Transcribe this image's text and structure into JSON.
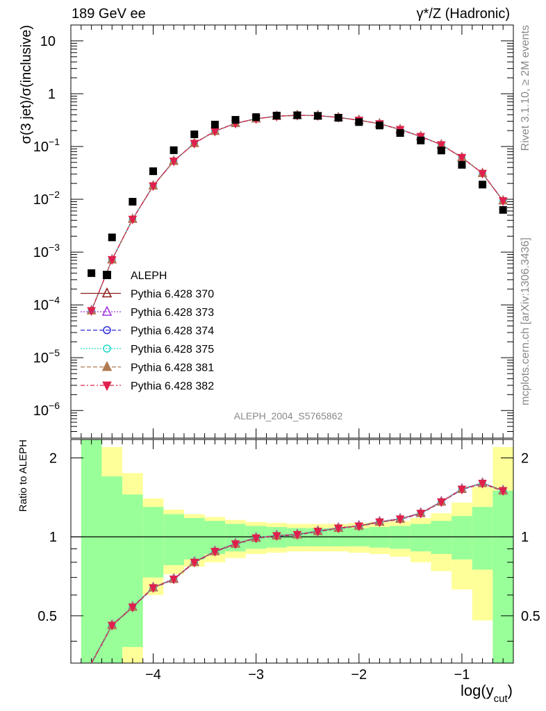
{
  "header": {
    "left": "189 GeV ee",
    "right": "γ*/Z (Hadronic)"
  },
  "side_labels": {
    "rivet": "Rivet 3.1.10, ≥ 2M events",
    "mcplots": "mcplots.cern.ch [arXiv:1306.3436]"
  },
  "analysis_id": "ALEPH_2004_S5765862",
  "axes": {
    "ylabel_top": "σ(3 jet)/σ(inclusive)",
    "ylabel_bottom": "Ratio to ALEPH",
    "xlabel": "log(y_cut)",
    "x_ticks": [
      "−4",
      "−3",
      "−2",
      "−1"
    ],
    "y_ticks_top": [
      "10^-6",
      "10^-5",
      "10^-4",
      "10^-3",
      "10^-2",
      "10^-1",
      "1",
      "10"
    ],
    "y_ticks_bottom": [
      "0.5",
      "1",
      "2"
    ]
  },
  "legend": [
    {
      "label": "ALEPH",
      "marker": "square-filled",
      "color": "#000000"
    },
    {
      "label": "Pythia 6.428 370",
      "marker": "triangle-up-open",
      "color": "#8b1a1a"
    },
    {
      "label": "Pythia 6.428 373",
      "marker": "triangle-up-open",
      "color": "#9a30e0"
    },
    {
      "label": "Pythia 6.428 374",
      "marker": "circle-open",
      "color": "#2c2cd8"
    },
    {
      "label": "Pythia 6.428 375",
      "marker": "circle-open",
      "color": "#20d8c8"
    },
    {
      "label": "Pythia 6.428 381",
      "marker": "triangle-up-filled",
      "color": "#b07a50"
    },
    {
      "label": "Pythia 6.428 382",
      "marker": "triangle-down-filled",
      "color": "#e0204c"
    }
  ],
  "chart_data": {
    "type": "scatter",
    "x_range": [
      -4.8,
      -0.5
    ],
    "y_range_top": [
      3e-07,
      20
    ],
    "y_scale_top": "log",
    "y_range_bottom": [
      0.33,
      2.35
    ],
    "y_scale_bottom": "log",
    "x": [
      -4.6,
      -4.4,
      -4.2,
      -4.0,
      -3.8,
      -3.6,
      -3.4,
      -3.2,
      -3.0,
      -2.8,
      -2.6,
      -2.4,
      -2.2,
      -2.0,
      -1.8,
      -1.6,
      -1.4,
      -1.2,
      -1.0,
      -0.8,
      -0.6
    ],
    "data": {
      "name": "ALEPH",
      "y": [
        0.0004,
        0.0019,
        0.009,
        0.034,
        0.085,
        0.17,
        0.26,
        0.32,
        0.36,
        0.385,
        0.39,
        0.38,
        0.35,
        0.29,
        0.25,
        0.18,
        0.13,
        0.084,
        0.045,
        0.019,
        0.0063
      ]
    },
    "mc_central": [
      7.8e-05,
      0.00072,
      0.0042,
      0.018,
      0.053,
      0.115,
      0.195,
      0.275,
      0.335,
      0.375,
      0.39,
      0.385,
      0.355,
      0.315,
      0.27,
      0.21,
      0.155,
      0.108,
      0.062,
      0.031,
      0.0094
    ],
    "ratio": [
      0.33,
      0.46,
      0.54,
      0.64,
      0.69,
      0.8,
      0.88,
      0.94,
      0.99,
      1.01,
      1.02,
      1.05,
      1.08,
      1.1,
      1.14,
      1.17,
      1.23,
      1.36,
      1.52,
      1.6,
      1.5
    ],
    "series": [
      {
        "name": "Pythia 6.428 370"
      },
      {
        "name": "Pythia 6.428 373"
      },
      {
        "name": "Pythia 6.428 374"
      },
      {
        "name": "Pythia 6.428 375"
      },
      {
        "name": "Pythia 6.428 381"
      },
      {
        "name": "Pythia 6.428 382"
      }
    ],
    "uncertainty_bands": {
      "x_edges": [
        -4.7,
        -4.5,
        -4.3,
        -4.1,
        -3.9,
        -3.7,
        -3.5,
        -3.3,
        -3.1,
        -2.9,
        -2.7,
        -2.5,
        -2.3,
        -2.1,
        -1.9,
        -1.7,
        -1.5,
        -1.3,
        -1.1,
        -0.9,
        -0.7,
        -0.5
      ],
      "green_up": [
        2.35,
        1.7,
        1.45,
        1.3,
        1.22,
        1.18,
        1.15,
        1.12,
        1.1,
        1.09,
        1.08,
        1.08,
        1.08,
        1.08,
        1.09,
        1.1,
        1.12,
        1.15,
        1.2,
        1.3,
        1.5
      ],
      "green_down": [
        0.33,
        0.33,
        0.38,
        0.7,
        0.78,
        0.82,
        0.86,
        0.88,
        0.9,
        0.91,
        0.92,
        0.92,
        0.92,
        0.92,
        0.91,
        0.9,
        0.88,
        0.86,
        0.82,
        0.75,
        0.33
      ],
      "yellow_up": [
        2.35,
        2.2,
        1.75,
        1.4,
        1.27,
        1.22,
        1.19,
        1.16,
        1.14,
        1.13,
        1.12,
        1.12,
        1.12,
        1.13,
        1.14,
        1.15,
        1.18,
        1.23,
        1.35,
        1.55,
        2.2
      ],
      "yellow_down": [
        0.33,
        0.33,
        0.33,
        0.6,
        0.72,
        0.77,
        0.8,
        0.83,
        0.86,
        0.87,
        0.88,
        0.88,
        0.88,
        0.87,
        0.86,
        0.84,
        0.8,
        0.74,
        0.63,
        0.48,
        0.33
      ]
    }
  }
}
